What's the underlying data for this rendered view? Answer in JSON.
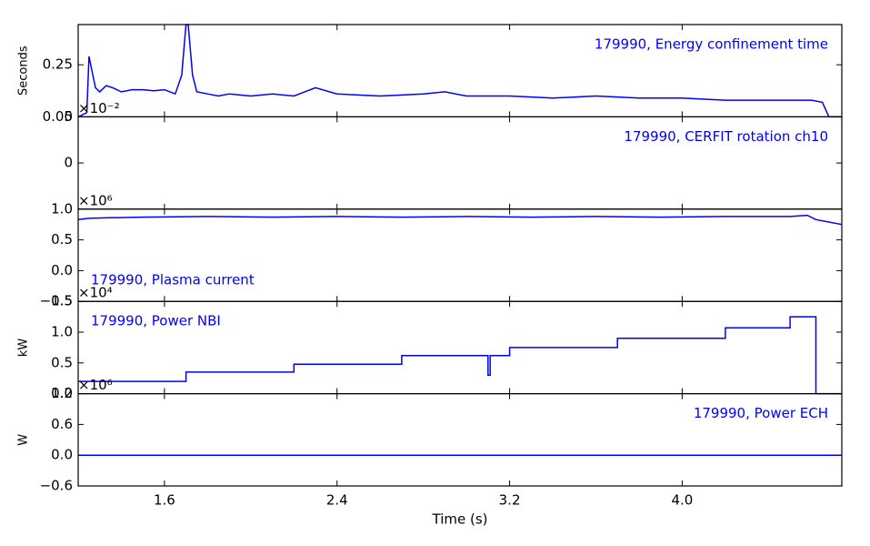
{
  "chart_data": [
    {
      "type": "line",
      "annotation": "179990, Energy confinement time",
      "annotation_position": "upper right",
      "ylabel": "Seconds",
      "xlim": [
        1.2,
        4.74
      ],
      "ylim": [
        0,
        0.443
      ],
      "yticks": [
        {
          "value": 0,
          "label": "0.00"
        },
        {
          "value": 0.25,
          "label": "0.25"
        }
      ],
      "series": [
        {
          "color": "#0000ff",
          "x": [
            1.2,
            1.24,
            1.25,
            1.28,
            1.3,
            1.33,
            1.36,
            1.4,
            1.45,
            1.5,
            1.55,
            1.6,
            1.65,
            1.68,
            1.7,
            1.71,
            1.73,
            1.75,
            1.8,
            1.85,
            1.9,
            2.0,
            2.1,
            2.2,
            2.25,
            2.3,
            2.4,
            2.6,
            2.8,
            2.9,
            3.0,
            3.2,
            3.4,
            3.6,
            3.8,
            4.0,
            4.2,
            4.4,
            4.6,
            4.65,
            4.68,
            4.74
          ],
          "values": [
            0,
            0.02,
            0.29,
            0.14,
            0.12,
            0.15,
            0.14,
            0.12,
            0.13,
            0.13,
            0.125,
            0.13,
            0.11,
            0.2,
            0.443,
            0.443,
            0.2,
            0.12,
            0.11,
            0.1,
            0.11,
            0.1,
            0.11,
            0.1,
            0.12,
            0.14,
            0.11,
            0.1,
            0.11,
            0.12,
            0.1,
            0.1,
            0.09,
            0.1,
            0.09,
            0.09,
            0.08,
            0.08,
            0.08,
            0.07,
            0.0,
            0.0
          ]
        }
      ]
    },
    {
      "type": "line",
      "annotation": "179990, CERFIT rotation ch10",
      "annotation_position": "upper right",
      "offset_text": "×10⁻²",
      "xlim": [
        1.2,
        4.74
      ],
      "ylim": [
        -5,
        5
      ],
      "yticks": [
        0,
        5
      ],
      "series": []
    },
    {
      "type": "line",
      "annotation": "179990, Plasma current",
      "annotation_position": "lower left",
      "offset_text": "×10⁶",
      "xlim": [
        1.2,
        4.74
      ],
      "ylim": [
        -0.5,
        1.0
      ],
      "yticks": [
        {
          "value": -0.5,
          "label": "−0.5"
        },
        {
          "value": 0,
          "label": "0.0"
        },
        0.5,
        {
          "value": 1.0,
          "label": "1.0"
        }
      ],
      "series": [
        {
          "color": "#0000ff",
          "x": [
            1.2,
            1.25,
            1.35,
            1.5,
            1.8,
            2.1,
            2.4,
            2.7,
            3.0,
            3.3,
            3.6,
            3.9,
            4.2,
            4.5,
            4.58,
            4.62,
            4.68,
            4.74
          ],
          "values": [
            0.83,
            0.85,
            0.86,
            0.87,
            0.88,
            0.87,
            0.88,
            0.87,
            0.88,
            0.87,
            0.88,
            0.87,
            0.88,
            0.88,
            0.9,
            0.83,
            0.79,
            0.75
          ]
        }
      ]
    },
    {
      "type": "line",
      "annotation": "179990, Power NBI",
      "annotation_position": "upper left",
      "ylabel": "kW",
      "offset_text": "×10⁴",
      "xlim": [
        1.2,
        4.74
      ],
      "ylim": [
        0,
        1.5
      ],
      "yticks": [
        {
          "value": 0,
          "label": "0.0"
        },
        0.5,
        {
          "value": 1.0,
          "label": "1.0"
        },
        1.5
      ],
      "series": [
        {
          "color": "#0000ff",
          "x": [
            1.2,
            1.7,
            1.7,
            2.2,
            2.2,
            2.7,
            2.7,
            3.1,
            3.1,
            3.11,
            3.11,
            3.2,
            3.2,
            3.7,
            3.7,
            4.2,
            4.2,
            4.5,
            4.5,
            4.62,
            4.62,
            4.74
          ],
          "values": [
            0.2,
            0.2,
            0.35,
            0.35,
            0.48,
            0.48,
            0.62,
            0.62,
            0.3,
            0.3,
            0.62,
            0.62,
            0.75,
            0.75,
            0.9,
            0.9,
            1.07,
            1.07,
            1.25,
            1.25,
            0,
            0
          ]
        }
      ]
    },
    {
      "type": "line",
      "annotation": "179990, Power ECH",
      "annotation_position": "upper right",
      "ylabel": "W",
      "offset_text": "×10⁶",
      "xlim": [
        1.2,
        4.74
      ],
      "ylim": [
        -0.6,
        1.2
      ],
      "yticks": [
        {
          "value": -0.6,
          "label": "−0.6"
        },
        {
          "value": 0,
          "label": "0.0"
        },
        0.6,
        1.2
      ],
      "xlabel": "Time (s)",
      "xticks": [
        1.6,
        2.4,
        3.2,
        {
          "value": 4.0,
          "label": "4.0"
        }
      ],
      "series": [
        {
          "color": "#0000ff",
          "x": [
            1.2,
            4.74
          ],
          "values": [
            0,
            0
          ]
        }
      ]
    }
  ]
}
